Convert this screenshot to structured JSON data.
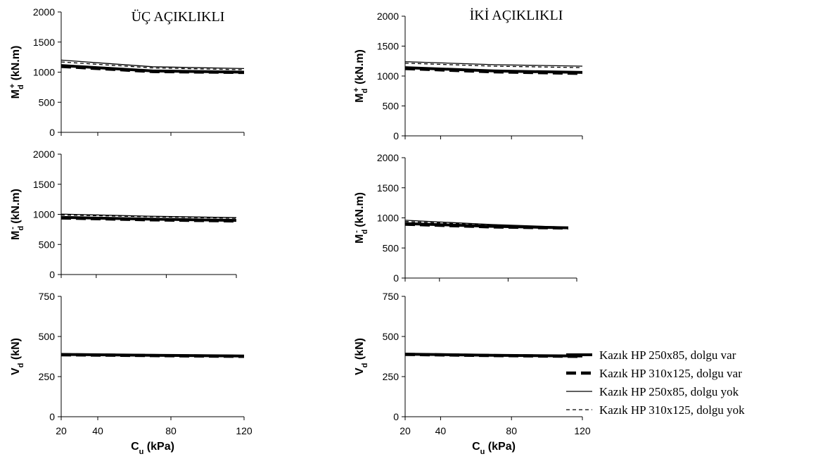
{
  "columns": [
    {
      "title": "ÜÇ AÇIKLIKLI"
    },
    {
      "title": "İKİ AÇIKLIKLI"
    }
  ],
  "legend": {
    "placement": "right",
    "entries": [
      {
        "label": "Kazık HP 250x85,    dolgu var",
        "style": "thick-solid"
      },
      {
        "label": "Kazık HP 310x125,  dolgu var",
        "style": "thick-dashed"
      },
      {
        "label": "Kazık HP 250x85,    dolgu yok",
        "style": "thin-solid"
      },
      {
        "label": "Kazık HP 310x125,  dolgu yok",
        "style": "thin-dashed"
      }
    ]
  },
  "chart_data": [
    {
      "type": "line",
      "panel": "three-span-Md-plus",
      "title": "ÜÇ AÇIKLIKLI",
      "ylabel_main": "M",
      "ylabel_sub": "d",
      "ylabel_sup": "+",
      "ylabel_unit": " (kN.m)",
      "xlabel": "",
      "ylim": [
        0,
        2000
      ],
      "yticks": [
        0,
        500,
        1000,
        1500,
        2000
      ],
      "xlim": [
        20,
        120
      ],
      "xticks": [
        20,
        40,
        80,
        120
      ],
      "series": [
        {
          "x": [
            20,
            70,
            120
          ],
          "values": [
            1110,
            1020,
            1000
          ]
        },
        {
          "x": [
            20,
            70,
            120
          ],
          "values": [
            1095,
            1010,
            995
          ]
        },
        {
          "x": [
            20,
            70,
            120
          ],
          "values": [
            1200,
            1090,
            1060
          ]
        },
        {
          "x": [
            20,
            70,
            120
          ],
          "values": [
            1170,
            1070,
            1040
          ]
        }
      ]
    },
    {
      "type": "line",
      "panel": "three-span-Md-minus",
      "title": "",
      "ylabel_main": "M",
      "ylabel_sub": "d",
      "ylabel_sup": "-",
      "ylabel_unit": " (kN.m)",
      "xlabel": "",
      "ylim": [
        0,
        2000
      ],
      "yticks": [
        0,
        500,
        1000,
        1500,
        2000
      ],
      "xlim": [
        20,
        120
      ],
      "xticks": [
        20,
        40,
        80,
        120
      ],
      "series": [
        {
          "x": [
            20,
            70,
            120
          ],
          "values": [
            950,
            920,
            900
          ]
        },
        {
          "x": [
            20,
            70,
            120
          ],
          "values": [
            940,
            910,
            890
          ]
        },
        {
          "x": [
            20,
            70,
            120
          ],
          "values": [
            1005,
            970,
            945
          ]
        },
        {
          "x": [
            20,
            70,
            120
          ],
          "values": [
            990,
            960,
            935
          ]
        }
      ]
    },
    {
      "type": "line",
      "panel": "three-span-Vd",
      "title": "",
      "ylabel_main": "V",
      "ylabel_sub": "d",
      "ylabel_sup": "",
      "ylabel_unit": " (kN)",
      "xlabel": "C_u (kPa)",
      "ylim": [
        0,
        750
      ],
      "yticks": [
        0,
        250,
        500,
        750
      ],
      "xlim": [
        20,
        120
      ],
      "xticks": [
        20,
        40,
        80,
        120
      ],
      "series": [
        {
          "x": [
            20,
            70,
            120
          ],
          "values": [
            388,
            383,
            378
          ]
        },
        {
          "x": [
            20,
            70,
            120
          ],
          "values": [
            386,
            381,
            376
          ]
        },
        {
          "x": [
            20,
            70,
            120
          ],
          "values": [
            392,
            386,
            380
          ]
        },
        {
          "x": [
            20,
            70,
            120
          ],
          "values": [
            390,
            385,
            379
          ]
        }
      ]
    },
    {
      "type": "line",
      "panel": "two-span-Md-plus",
      "title": "İKİ AÇIKLIKLI",
      "ylabel_main": "M",
      "ylabel_sub": "d",
      "ylabel_sup": "+",
      "ylabel_unit": " (kN.m)",
      "xlabel": "",
      "ylim": [
        0,
        2000
      ],
      "yticks": [
        0,
        500,
        1000,
        1500,
        2000
      ],
      "xlim": [
        20,
        120
      ],
      "xticks": [
        20,
        40,
        80,
        120
      ],
      "series": [
        {
          "x": [
            20,
            70,
            120
          ],
          "values": [
            1140,
            1085,
            1060
          ]
        },
        {
          "x": [
            20,
            70,
            120
          ],
          "values": [
            1125,
            1070,
            1045
          ]
        },
        {
          "x": [
            20,
            70,
            120
          ],
          "values": [
            1240,
            1190,
            1165
          ]
        },
        {
          "x": [
            20,
            70,
            120
          ],
          "values": [
            1215,
            1165,
            1140
          ]
        }
      ]
    },
    {
      "type": "line",
      "panel": "two-span-Md-minus",
      "title": "",
      "ylabel_main": "M",
      "ylabel_sub": "d",
      "ylabel_sup": "-",
      "ylabel_unit": " (kN.m)",
      "xlabel": "",
      "ylim": [
        0,
        2000
      ],
      "yticks": [
        0,
        500,
        1000,
        1500,
        2000
      ],
      "xlim": [
        20,
        120
      ],
      "xticks": [
        20,
        40,
        80,
        120
      ],
      "series": [
        {
          "x": [
            20,
            70,
            115
          ],
          "values": [
            905,
            860,
            835
          ]
        },
        {
          "x": [
            20,
            70,
            115
          ],
          "values": [
            895,
            850,
            830
          ]
        },
        {
          "x": [
            20,
            70,
            115
          ],
          "values": [
            960,
            890,
            845
          ]
        },
        {
          "x": [
            20,
            70,
            115
          ],
          "values": [
            940,
            880,
            840
          ]
        }
      ]
    },
    {
      "type": "line",
      "panel": "two-span-Vd",
      "title": "",
      "ylabel_main": "V",
      "ylabel_sub": "d",
      "ylabel_sup": "",
      "ylabel_unit": " (kN)",
      "xlabel": "C_u (kPa)",
      "ylim": [
        0,
        750
      ],
      "yticks": [
        0,
        250,
        500,
        750
      ],
      "xlim": [
        20,
        120
      ],
      "xticks": [
        20,
        40,
        80,
        120
      ],
      "series": [
        {
          "x": [
            20,
            70,
            120
          ],
          "values": [
            390,
            383,
            378
          ]
        },
        {
          "x": [
            20,
            70,
            120
          ],
          "values": [
            388,
            381,
            376
          ]
        },
        {
          "x": [
            20,
            70,
            120
          ],
          "values": [
            393,
            386,
            380
          ]
        },
        {
          "x": [
            20,
            70,
            120
          ],
          "values": [
            391,
            384,
            379
          ]
        }
      ]
    }
  ]
}
